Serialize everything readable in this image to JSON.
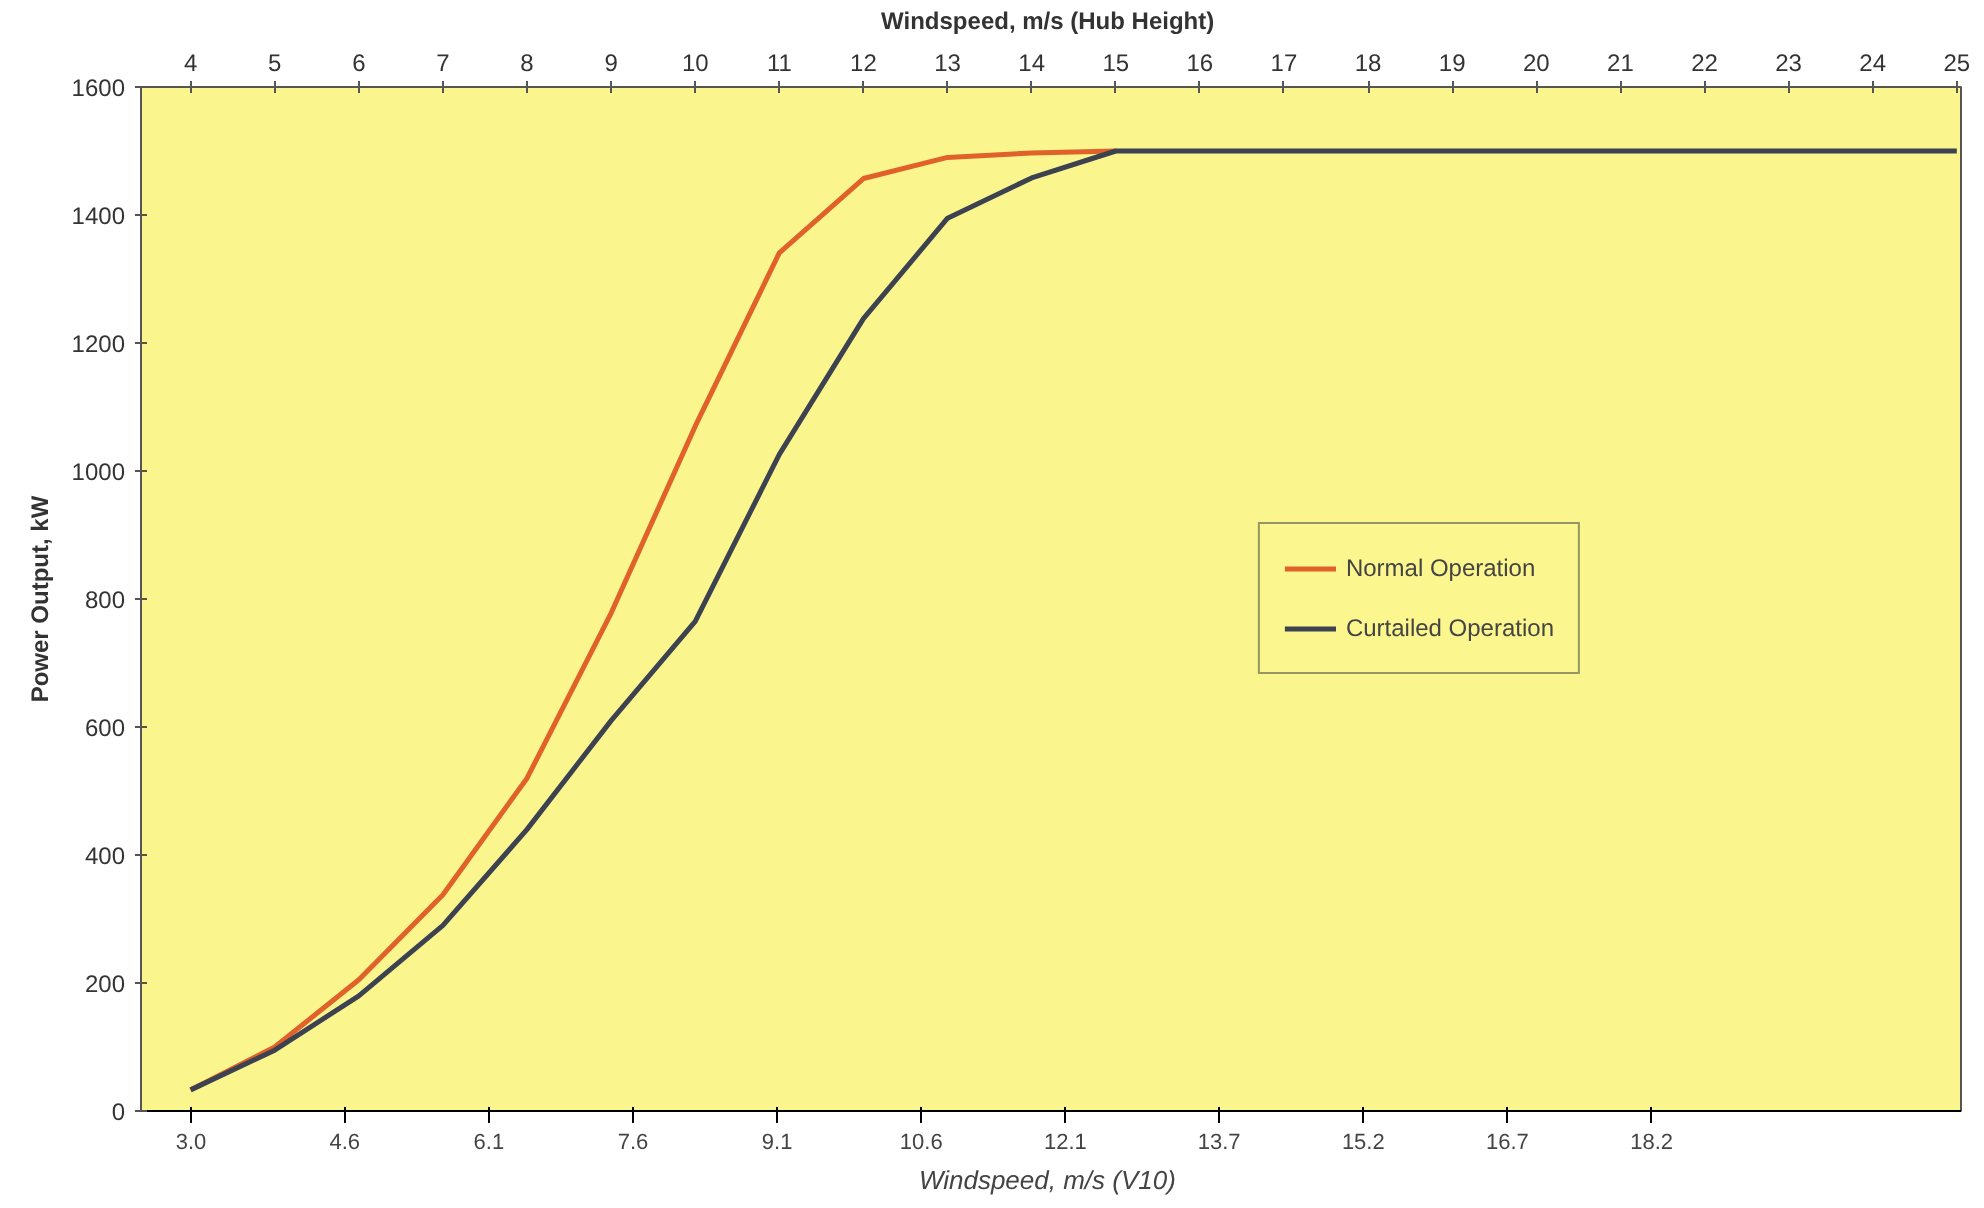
{
  "chart_data": {
    "type": "line",
    "xlabel": "Windspeed, m/s  (V10)",
    "x2label": "Windspeed, m/s  (Hub Height)",
    "ylabel": "Power Output, kW",
    "x": [
      4,
      5,
      6,
      7,
      8,
      9,
      10,
      11,
      12,
      13,
      14,
      15,
      16,
      17,
      18,
      19,
      20,
      21,
      22,
      23,
      24,
      25
    ],
    "series": [
      {
        "name": "Normal Operation",
        "color": "#e0622a",
        "axis": "x2",
        "values": [
          33,
          100,
          205,
          338,
          520,
          778,
          1070,
          1341,
          1457,
          1490,
          1497,
          1500,
          null,
          null,
          null,
          null,
          null,
          null,
          null,
          null,
          null,
          null
        ]
      },
      {
        "name": "Curtailed Operation",
        "color": "#3c4250",
        "axis": "x2",
        "values": [
          33,
          95,
          180,
          290,
          440,
          610,
          765,
          1026,
          1238,
          1395,
          1458,
          1500,
          1500,
          1500,
          1500,
          1500,
          1500,
          1500,
          1500,
          1500,
          1500,
          1500
        ]
      }
    ],
    "xlim": [
      2.48,
      21.42
    ],
    "xticks": [
      {
        "value": 3.0,
        "label": "3.0"
      },
      4.6,
      6.1,
      7.6,
      9.1,
      10.6,
      12.1,
      13.7,
      15.2,
      16.7,
      18.2
    ],
    "x2lim": [
      3.41,
      25.05
    ],
    "x2ticks": [
      4,
      5,
      6,
      7,
      8,
      9,
      10,
      11,
      12,
      13,
      14,
      15,
      16,
      17,
      18,
      19,
      20,
      21,
      22,
      23,
      24,
      25
    ],
    "ylim": [
      0,
      1600
    ],
    "yticks": [
      0,
      200,
      400,
      600,
      800,
      1000,
      1200,
      1400,
      1600
    ],
    "grid": false,
    "legend": "right",
    "marker": "none",
    "line_style": "solid"
  }
}
